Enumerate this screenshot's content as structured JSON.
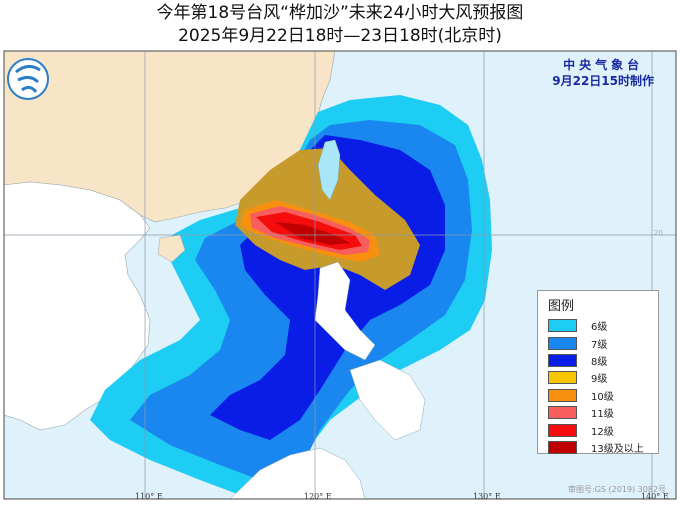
{
  "title": {
    "line1": "今年第18号台风“桦加沙”未来24小时大风预报图",
    "line2": "2025年9月22日18时—23日18时(北京时)"
  },
  "agency": {
    "name": "中央气象台",
    "issued": "9月22日15时制作",
    "logo_icon": "cma-logo-icon"
  },
  "legend": {
    "title": "图例",
    "items": [
      {
        "label": "6级",
        "color": "#1ecdf4"
      },
      {
        "label": "7级",
        "color": "#1a86ef"
      },
      {
        "label": "8级",
        "color": "#0a1de6"
      },
      {
        "label": "9级",
        "color": "#f7c600"
      },
      {
        "label": "10级",
        "color": "#f7900f"
      },
      {
        "label": "11级",
        "color": "#f95e5e"
      },
      {
        "label": "12级",
        "color": "#f50d0d"
      },
      {
        "label": "13级及以上",
        "color": "#c00000"
      }
    ]
  },
  "axes": {
    "longitude_labels": [
      "110° E",
      "120° E",
      "130° E",
      "140° E"
    ],
    "latitude_labels": [
      "20"
    ]
  },
  "watermark": "审图号:GS (2019) 3082号",
  "colors": {
    "sea": "#dff1fb",
    "china_land": "#f8e4c6",
    "other_land": "#ffffff"
  }
}
